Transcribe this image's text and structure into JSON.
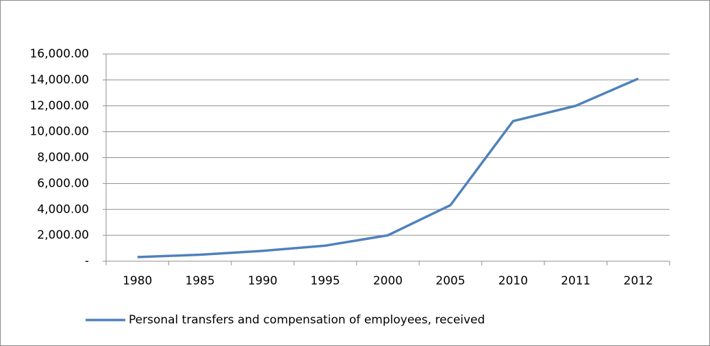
{
  "chart_data": {
    "type": "line",
    "categories": [
      "1980",
      "1985",
      "1990",
      "1995",
      "2000",
      "2005",
      "2010",
      "2011",
      "2012"
    ],
    "series": [
      {
        "name": "Personal transfers and compensation of employees, received",
        "color": "#4f81bd",
        "values": [
          320,
          500,
          800,
          1200,
          2000,
          4330,
          10820,
          12000,
          14100
        ]
      }
    ],
    "ylim": [
      0,
      16000
    ],
    "yticks": [
      {
        "value": 0,
        "label": "-"
      },
      {
        "value": 2000,
        "label": "2,000.00"
      },
      {
        "value": 4000,
        "label": "4,000.00"
      },
      {
        "value": 6000,
        "label": "6,000.00"
      },
      {
        "value": 8000,
        "label": "8,000.00"
      },
      {
        "value": 10000,
        "label": "10,000.00"
      },
      {
        "value": 12000,
        "label": "12,000.00"
      },
      {
        "value": 14000,
        "label": "14,000.00"
      },
      {
        "value": 16000,
        "label": "16,000.00"
      }
    ],
    "grid": true,
    "legend": "bottom"
  }
}
